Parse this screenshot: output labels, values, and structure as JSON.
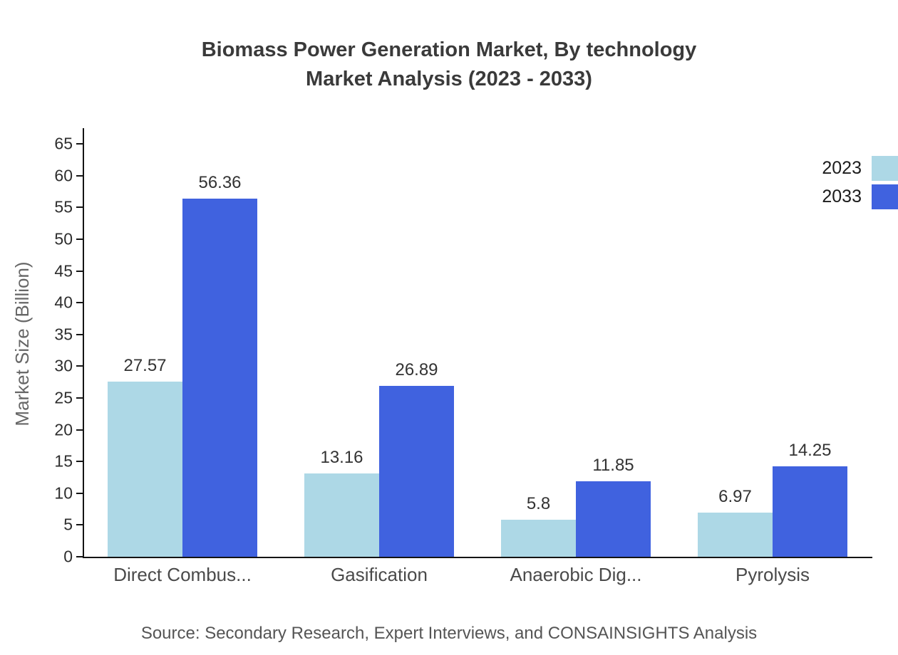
{
  "title": {
    "line1": "Biomass Power Generation Market, By technology",
    "line2": "Market Analysis (2023 - 2033)"
  },
  "source": "Source: Secondary Research, Expert Interviews, and CONSAINSIGHTS Analysis",
  "colors": {
    "series_2023": "#ADD8E6",
    "series_2033": "#4062DF",
    "axis": "#141414",
    "title_text": "#3a3a3a",
    "label_text": "#333333"
  },
  "chart_data": {
    "type": "bar",
    "categories": [
      "Direct Combus...",
      "Gasification",
      "Anaerobic Dig...",
      "Pyrolysis"
    ],
    "series": [
      {
        "name": "2023",
        "color": "#ADD8E6",
        "values": [
          27.57,
          13.16,
          5.8,
          6.97
        ]
      },
      {
        "name": "2033",
        "color": "#4062DF",
        "values": [
          56.36,
          26.89,
          11.85,
          14.25
        ]
      }
    ],
    "title": "Biomass Power Generation Market, By technology Market Analysis (2023 - 2033)",
    "xlabel": "",
    "ylabel": "Market Size (Billion)",
    "ylim": [
      0,
      67.5
    ],
    "yticks": [
      0,
      5,
      10,
      15,
      20,
      25,
      30,
      35,
      40,
      45,
      50,
      55,
      60,
      65
    ],
    "grid": false,
    "legend_position": "top-right"
  }
}
